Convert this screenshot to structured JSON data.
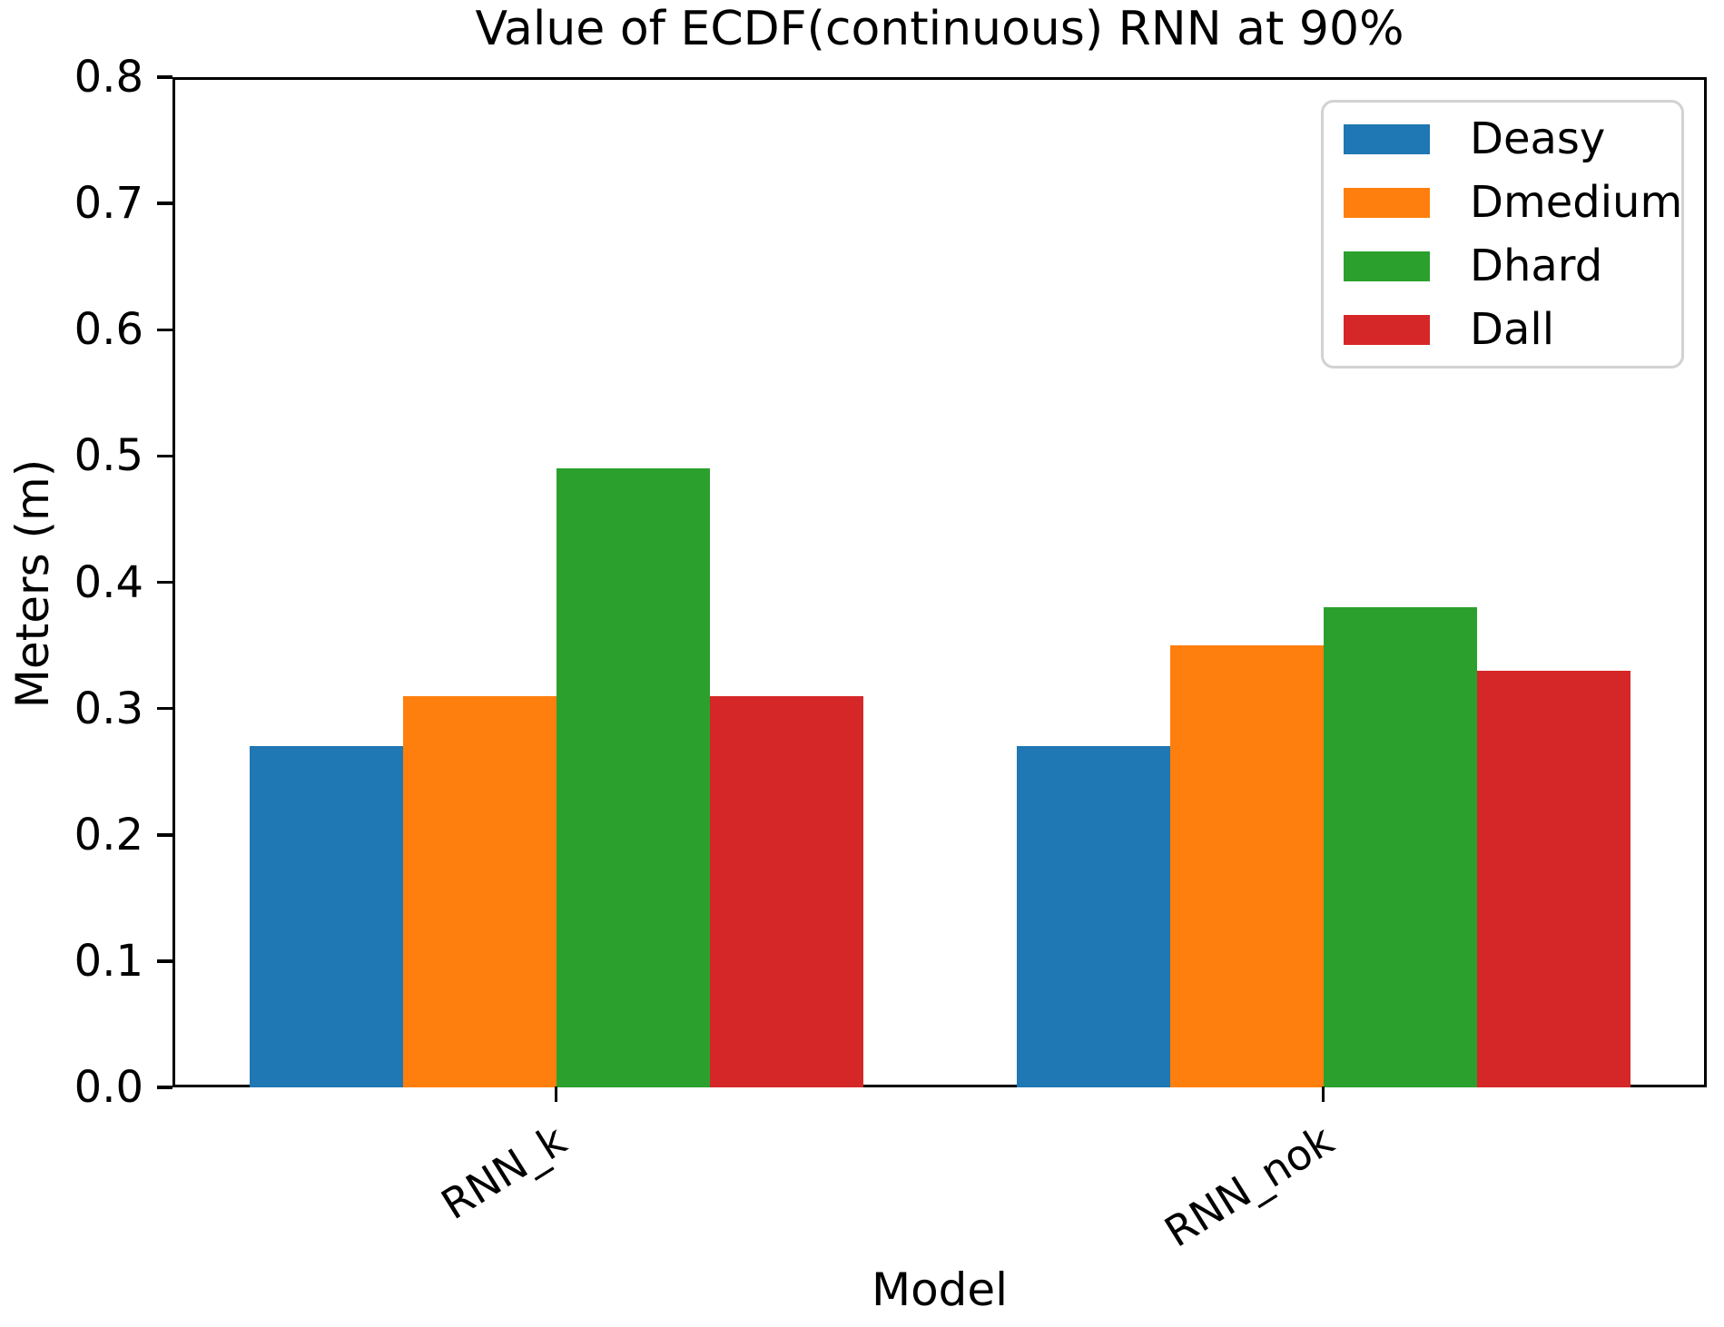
{
  "title": "Value of ECDF(continuous) RNN at 90%",
  "chart_data": {
    "type": "bar",
    "title": "Value of ECDF(continuous) RNN at 90%",
    "xlabel": "Model",
    "ylabel": "Meters (m)",
    "categories": [
      "RNN_k",
      "RNN_nok"
    ],
    "series": [
      {
        "name": "Deasy",
        "color": "#1f77b4",
        "values": [
          0.27,
          0.27
        ]
      },
      {
        "name": "Dmedium",
        "color": "#ff7f0e",
        "values": [
          0.31,
          0.35
        ]
      },
      {
        "name": "Dhard",
        "color": "#2ca02c",
        "values": [
          0.49,
          0.38
        ]
      },
      {
        "name": "Dall",
        "color": "#d62728",
        "values": [
          0.31,
          0.33
        ]
      }
    ],
    "ylim": [
      0.0,
      0.8
    ],
    "yticks": [
      "0.0",
      "0.1",
      "0.2",
      "0.3",
      "0.4",
      "0.5",
      "0.6",
      "0.7",
      "0.8"
    ],
    "grid": false,
    "legend_position": "upper right",
    "xtick_rotation_deg": 32
  }
}
